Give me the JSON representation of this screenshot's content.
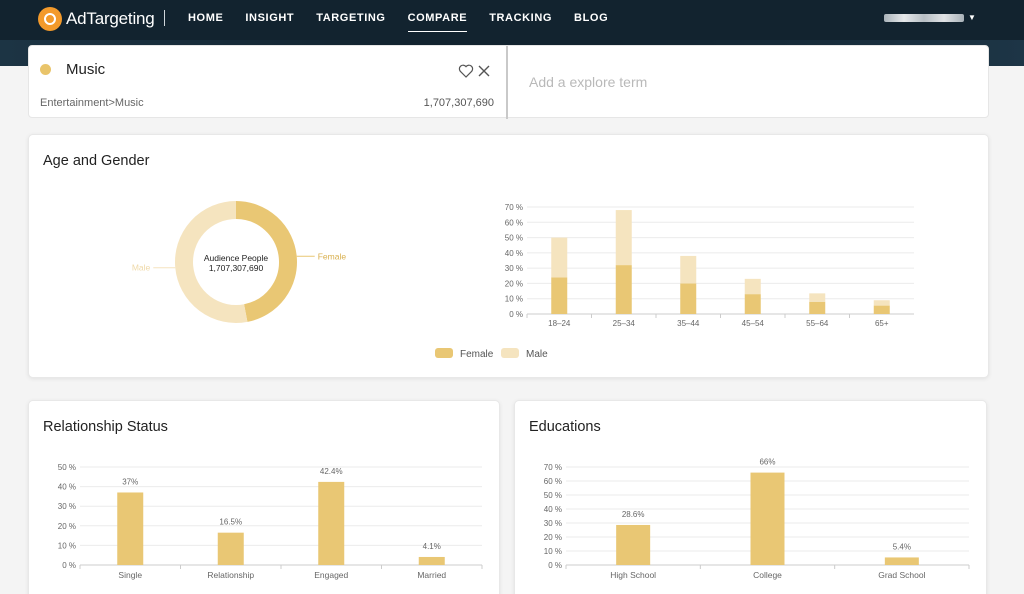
{
  "app": {
    "name": "AdTargeting"
  },
  "nav": {
    "items": [
      "HOME",
      "INSIGHT",
      "TARGETING",
      "COMPARE",
      "TRACKING",
      "BLOG"
    ],
    "active": "COMPARE"
  },
  "user": {
    "name": "████████"
  },
  "compare": {
    "term": {
      "name": "Music",
      "category": "Entertainment>Music",
      "audience": "1,707,307,690",
      "color": "#e9c46a"
    },
    "explore_placeholder": "Add a explore term"
  },
  "colors": {
    "female": "#e9c774",
    "male": "#f5e4bf",
    "bar": "#e9c774",
    "grid": "#ebebeb",
    "axis": "#cccccc"
  },
  "age_gender": {
    "title": "Age and Gender",
    "center_label": "Audience People",
    "center_value": "1,707,307,690",
    "legend": [
      "Female",
      "Male"
    ]
  },
  "relationship": {
    "title": "Relationship Status"
  },
  "education": {
    "title": "Educations"
  },
  "chart_data": [
    {
      "type": "pie",
      "labels": [
        "Female",
        "Male"
      ],
      "values": [
        47,
        53
      ]
    },
    {
      "type": "bar",
      "stacked": true,
      "categories": [
        "18–24",
        "25–34",
        "35–44",
        "45–54",
        "55–64",
        "65+"
      ],
      "series": [
        {
          "name": "Female",
          "values": [
            24,
            32,
            20,
            13,
            8,
            5.5
          ]
        },
        {
          "name": "Male",
          "values": [
            26,
            36,
            18,
            10,
            5.5,
            3.5
          ]
        }
      ],
      "ylim": [
        0,
        70
      ],
      "yticks": [
        "0 %",
        "10 %",
        "20 %",
        "30 %",
        "40 %",
        "50 %",
        "60 %",
        "70 %"
      ],
      "legend": "bottom"
    },
    {
      "type": "bar",
      "title": "Relationship Status",
      "categories": [
        "Single",
        "Relationship",
        "Engaged",
        "Married"
      ],
      "values": [
        37,
        16.5,
        42.4,
        4.1
      ],
      "labels": [
        "37%",
        "16.5%",
        "42.4%",
        "4.1%"
      ],
      "ylim": [
        0,
        50
      ],
      "yticks": [
        "0 %",
        "10 %",
        "20 %",
        "30 %",
        "40 %",
        "50 %"
      ]
    },
    {
      "type": "bar",
      "title": "Educations",
      "categories": [
        "High School",
        "College",
        "Grad School"
      ],
      "values": [
        28.6,
        66,
        5.4
      ],
      "labels": [
        "28.6%",
        "66%",
        "5.4%"
      ],
      "ylim": [
        0,
        70
      ],
      "yticks": [
        "0 %",
        "10 %",
        "20 %",
        "30 %",
        "40 %",
        "50 %",
        "60 %",
        "70 %"
      ]
    }
  ]
}
